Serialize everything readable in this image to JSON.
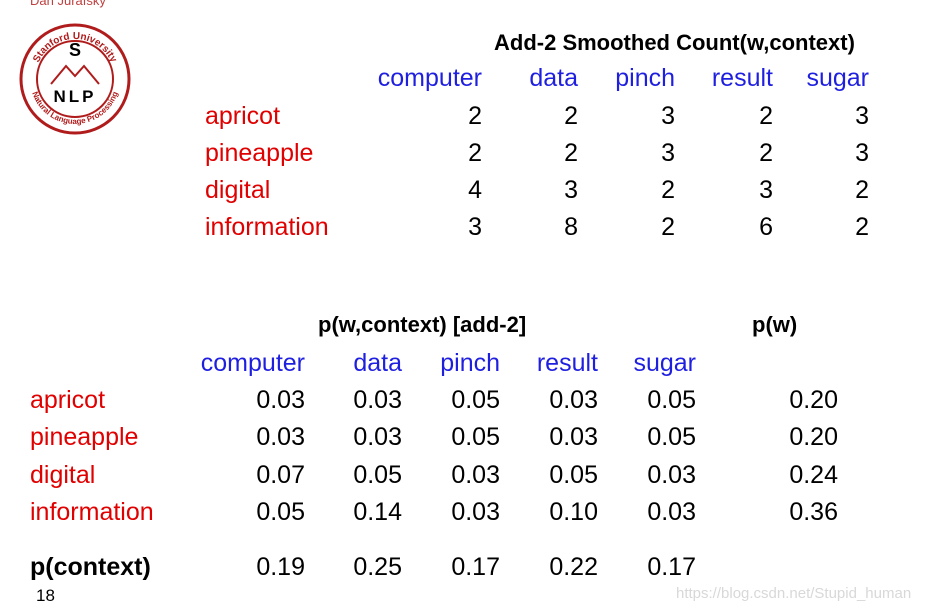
{
  "header": {
    "author": "Dan Jurafsky",
    "logo": {
      "top": "Stanford University",
      "letter": "S",
      "middle": "NLP",
      "bottom": "Natural Language Processing"
    }
  },
  "table1": {
    "title": "Add-2 Smoothed Count(w,context)",
    "columns": [
      "computer",
      "data",
      "pinch",
      "result",
      "sugar"
    ],
    "rows": [
      {
        "label": "apricot",
        "cells": [
          "2",
          "2",
          "3",
          "2",
          "3"
        ]
      },
      {
        "label": "pineapple",
        "cells": [
          "2",
          "2",
          "3",
          "2",
          "3"
        ]
      },
      {
        "label": "digital",
        "cells": [
          "4",
          "3",
          "2",
          "3",
          "2"
        ]
      },
      {
        "label": "information",
        "cells": [
          "3",
          "8",
          "2",
          "6",
          "2"
        ]
      }
    ]
  },
  "table2": {
    "title": "p(w,context) [add-2]",
    "marginal_title": "p(w)",
    "columns": [
      "computer",
      "data",
      "pinch",
      "result",
      "sugar"
    ],
    "rows": [
      {
        "label": "apricot",
        "cells": [
          "0.03",
          "0.03",
          "0.05",
          "0.03",
          "0.05"
        ],
        "marginal": "0.20"
      },
      {
        "label": "pineapple",
        "cells": [
          "0.03",
          "0.03",
          "0.05",
          "0.03",
          "0.05"
        ],
        "marginal": "0.20"
      },
      {
        "label": "digital",
        "cells": [
          "0.07",
          "0.05",
          "0.03",
          "0.05",
          "0.03"
        ],
        "marginal": "0.24"
      },
      {
        "label": "information",
        "cells": [
          "0.05",
          "0.14",
          "0.03",
          "0.10",
          "0.03"
        ],
        "marginal": "0.36"
      }
    ],
    "total_label": "p(context)",
    "totals": [
      "0.19",
      "0.25",
      "0.17",
      "0.22",
      "0.17"
    ]
  },
  "footer": {
    "page": "18",
    "watermark": "https://blog.csdn.net/Stupid_human"
  }
}
